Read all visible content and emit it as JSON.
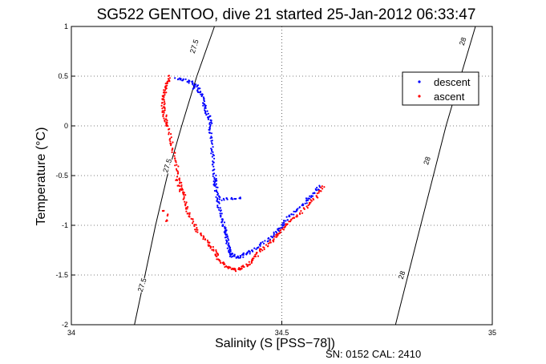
{
  "chart_data": {
    "type": "scatter",
    "title": "SG522 GENTOO, dive 21 started 25-Jan-2012 06:33:47",
    "xlabel": "Salinity (S [PSS−78])",
    "ylabel": "Temperature (°C)",
    "xlim": [
      34,
      35
    ],
    "ylim": [
      -2,
      1
    ],
    "xticks": [
      34,
      34.5,
      35
    ],
    "xtick_labels": [
      "34",
      "34.5",
      "35"
    ],
    "yticks": [
      -2,
      -1.5,
      -1,
      -0.5,
      0,
      0.5,
      1
    ],
    "ytick_labels": [
      "-2",
      "-1.5",
      "-1",
      "-0.5",
      "0",
      "0.5",
      "1"
    ],
    "grid": true,
    "legend_position": "top-right",
    "footer": "SN: 0152  CAL: 2410",
    "contours": [
      {
        "label": "27.5",
        "color": "#000000",
        "label_positions": [
          [
            34.292,
            0.8
          ],
          [
            34.228,
            -0.4
          ],
          [
            34.168,
            -1.6
          ]
        ],
        "points": [
          [
            34.15,
            -2
          ],
          [
            34.175,
            -1.5
          ],
          [
            34.2,
            -1
          ],
          [
            34.228,
            -0.5
          ],
          [
            34.262,
            0
          ],
          [
            34.298,
            0.5
          ],
          [
            34.34,
            1
          ]
        ]
      },
      {
        "label": "28",
        "color": "#000000",
        "label_positions": [
          [
            34.93,
            0.85
          ],
          [
            34.845,
            -0.35
          ],
          [
            34.785,
            -1.5
          ]
        ],
        "points": [
          [
            34.77,
            -2
          ],
          [
            34.8,
            -1.5
          ],
          [
            34.83,
            -1
          ],
          [
            34.86,
            -0.5
          ],
          [
            34.89,
            0
          ],
          [
            34.925,
            0.5
          ],
          [
            34.96,
            1
          ]
        ]
      }
    ],
    "series": [
      {
        "name": "descent",
        "color": "#0000ff",
        "path": [
          [
            34.25,
            0.48
          ],
          [
            34.28,
            0.45
          ],
          [
            34.3,
            0.4
          ],
          [
            34.31,
            0.3
          ],
          [
            34.32,
            0.15
          ],
          [
            34.33,
            0.05
          ],
          [
            34.33,
            -0.1
          ],
          [
            34.335,
            -0.3
          ],
          [
            34.34,
            -0.5
          ],
          [
            34.345,
            -0.65
          ],
          [
            34.35,
            -0.8
          ],
          [
            34.36,
            -0.95
          ],
          [
            34.365,
            -1.05
          ],
          [
            34.37,
            -1.15
          ],
          [
            34.375,
            -1.25
          ],
          [
            34.38,
            -1.3
          ],
          [
            34.4,
            -1.32
          ],
          [
            34.42,
            -1.28
          ],
          [
            34.45,
            -1.2
          ],
          [
            34.48,
            -1.1
          ],
          [
            34.5,
            -1.0
          ],
          [
            34.52,
            -0.9
          ],
          [
            34.55,
            -0.8
          ],
          [
            34.57,
            -0.7
          ],
          [
            34.59,
            -0.6
          ]
        ],
        "extra_clusters": [
          [
            34.35,
            -0.72
          ],
          [
            34.36,
            -0.74
          ],
          [
            34.37,
            -0.735
          ],
          [
            34.38,
            -0.73
          ],
          [
            34.39,
            -0.725
          ],
          [
            34.4,
            -0.72
          ],
          [
            34.34,
            -0.6
          ],
          [
            34.345,
            -0.55
          ],
          [
            34.33,
            0.1
          ],
          [
            34.32,
            0.2
          ],
          [
            34.3,
            0.35
          ],
          [
            34.29,
            0.38
          ]
        ]
      },
      {
        "name": "ascent",
        "color": "#ff0000",
        "path": [
          [
            34.235,
            0.5
          ],
          [
            34.225,
            0.4
          ],
          [
            34.22,
            0.3
          ],
          [
            34.218,
            0.2
          ],
          [
            34.222,
            0.1
          ],
          [
            34.23,
            0.0
          ],
          [
            34.24,
            -0.2
          ],
          [
            34.25,
            -0.4
          ],
          [
            34.26,
            -0.6
          ],
          [
            34.27,
            -0.75
          ],
          [
            34.28,
            -0.9
          ],
          [
            34.3,
            -1.05
          ],
          [
            34.32,
            -1.15
          ],
          [
            34.34,
            -1.25
          ],
          [
            34.35,
            -1.35
          ],
          [
            34.37,
            -1.42
          ],
          [
            34.39,
            -1.45
          ],
          [
            34.41,
            -1.42
          ],
          [
            34.43,
            -1.35
          ],
          [
            34.45,
            -1.25
          ],
          [
            34.48,
            -1.15
          ],
          [
            34.5,
            -1.05
          ],
          [
            34.52,
            -0.95
          ],
          [
            34.55,
            -0.85
          ],
          [
            34.58,
            -0.72
          ],
          [
            34.6,
            -0.6
          ]
        ],
        "extra_clusters": [
          [
            34.22,
            -0.85
          ],
          [
            34.23,
            -0.9
          ],
          [
            34.225,
            -0.95
          ],
          [
            34.25,
            -0.55
          ],
          [
            34.255,
            -0.6
          ],
          [
            34.26,
            -0.65
          ]
        ]
      }
    ]
  }
}
